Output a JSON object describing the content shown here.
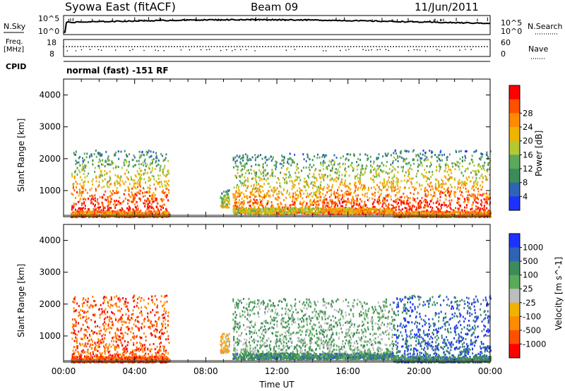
{
  "header": {
    "station": "Syowa East (fitACF)",
    "beam": "Beam 09",
    "date": "11/Jun/2011"
  },
  "top_panels": {
    "nsky_label": "N.Sky",
    "nsearch_label": "N.Search",
    "log_top": "10^5",
    "log_bottom": "10^0",
    "freq_label_1": "Freq.",
    "freq_label_2": "[MHz]",
    "freq_top": "18",
    "freq_bottom": "8",
    "nave_top": "60",
    "nave_bottom": "0",
    "nave_label": "Nave",
    "cpid_label": "CPID",
    "cpid_value": "normal (fast) -151 RF"
  },
  "colors": {
    "power": [
      "#1e32ff",
      "#2f64b4",
      "#3c8c5a",
      "#5aaa5a",
      "#b4c832",
      "#f0b400",
      "#ff8c00",
      "#ff5000",
      "#ff0000"
    ],
    "velocity": [
      "#1e32ff",
      "#2f64b4",
      "#3c8c5a",
      "#5aaa5a",
      "#bebebe",
      "#f0b400",
      "#ff8c00",
      "#ff5000",
      "#ff0000"
    ]
  },
  "chart_data": [
    {
      "type": "heatmap",
      "name": "Power",
      "xlabel": "",
      "ylabel": "Slant Range [km]",
      "xlim": [
        "00:00",
        "24:00"
      ],
      "ylim": [
        180,
        4500
      ],
      "yticks": [
        "1000",
        "2000",
        "3000",
        "4000"
      ],
      "colorbar": {
        "label": "Power [dB]",
        "ticks": [
          "4",
          "8",
          "12",
          "16",
          "20",
          "24",
          "28"
        ],
        "range": [
          0,
          30
        ]
      },
      "regions": [
        {
          "start_hour": 0.4,
          "end_hour": 5.9,
          "min_km": 200,
          "max_km": 2300,
          "peak_db": 28
        },
        {
          "start_hour": 8.8,
          "end_hour": 9.3,
          "min_km": 500,
          "max_km": 1100,
          "peak_db": 12
        },
        {
          "start_hour": 9.5,
          "end_hour": 14.5,
          "min_km": 300,
          "max_km": 2200,
          "peak_db": 22
        },
        {
          "start_hour": 14.5,
          "end_hour": 18.5,
          "min_km": 300,
          "max_km": 2200,
          "peak_db": 26
        },
        {
          "start_hour": 18.5,
          "end_hour": 24.0,
          "min_km": 200,
          "max_km": 2300,
          "peak_db": 28
        }
      ]
    },
    {
      "type": "heatmap",
      "name": "Velocity",
      "xlabel": "Time UT",
      "ylabel": "Slant Range [km]",
      "xlim": [
        "00:00",
        "24:00"
      ],
      "ylim": [
        180,
        4500
      ],
      "yticks": [
        "1000",
        "2000",
        "3000",
        "4000"
      ],
      "xticks": [
        "00:00",
        "04:00",
        "08:00",
        "12:00",
        "16:00",
        "20:00",
        "00:00"
      ],
      "colorbar": {
        "label": "Velocity [m s^-1]",
        "ticks": [
          "1000",
          "500",
          "100",
          "25",
          "-25",
          "-100",
          "-500",
          "-1000"
        ],
        "range": [
          -1000,
          1000
        ]
      },
      "regions": [
        {
          "start_hour": 0.4,
          "end_hour": 5.9,
          "min_km": 200,
          "max_km": 2300,
          "dominant_ms": -500
        },
        {
          "start_hour": 8.8,
          "end_hour": 9.3,
          "min_km": 500,
          "max_km": 1100,
          "dominant_ms": -100
        },
        {
          "start_hour": 9.5,
          "end_hour": 14.5,
          "min_km": 300,
          "max_km": 2200,
          "dominant_ms": 100
        },
        {
          "start_hour": 14.5,
          "end_hour": 18.5,
          "min_km": 300,
          "max_km": 2200,
          "dominant_ms": 100
        },
        {
          "start_hour": 18.5,
          "end_hour": 24.0,
          "min_km": 200,
          "max_km": 2300,
          "dominant_ms": 500
        }
      ]
    }
  ]
}
